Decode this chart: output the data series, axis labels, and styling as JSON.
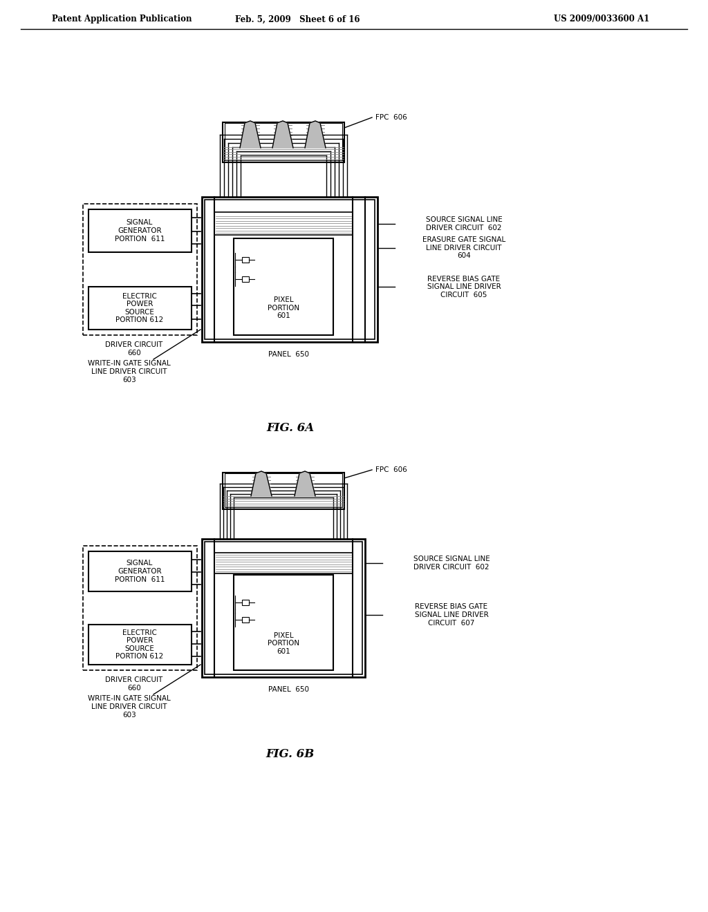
{
  "title_left": "Patent Application Publication",
  "title_mid": "Feb. 5, 2009   Sheet 6 of 16",
  "title_right": "US 2009/0033600 A1",
  "fig_label_a": "FIG. 6A",
  "fig_label_b": "FIG. 6B",
  "background": "#ffffff",
  "diagram_a": {
    "panel_label": "PANEL  650",
    "pixel_label": "PIXEL\nPORTION\n601",
    "fpc_label": "FPC  606",
    "driver_circuit_label": "DRIVER CIRCUIT\n660",
    "signal_gen_label": "SIGNAL\nGENERATOR\nPORTION  611",
    "elec_power_label": "ELECTRIC\nPOWER\nSOURCE\nPORTION 612",
    "write_in_label": "WRITE-IN GATE SIGNAL\nLINE DRIVER CIRCUIT\n603",
    "source_signal_label": "SOURCE SIGNAL LINE\nDRIVER CIRCUIT  602",
    "erasure_gate_label": "ERASURE GATE SIGNAL\nLINE DRIVER CIRCUIT\n604",
    "reverse_bias_label": "REVERSE BIAS GATE\nSIGNAL LINE DRIVER\nCIRCUIT  605"
  },
  "diagram_b": {
    "panel_label": "PANEL  650",
    "pixel_label": "PIXEL\nPORTION\n601",
    "fpc_label": "FPC  606",
    "driver_circuit_label": "DRIVER CIRCUIT\n660",
    "signal_gen_label": "SIGNAL\nGENERATOR\nPORTION  611",
    "elec_power_label": "ELECTRIC\nPOWER\nSOURCE\nPORTION 612",
    "write_in_label": "WRITE-IN GATE SIGNAL\nLINE DRIVER CIRCUIT\n603",
    "source_signal_label": "SOURCE SIGNAL LINE\nDRIVER CIRCUIT  602",
    "reverse_bias_label": "REVERSE BIAS GATE\nSIGNAL LINE DRIVER\nCIRCUIT  607"
  }
}
